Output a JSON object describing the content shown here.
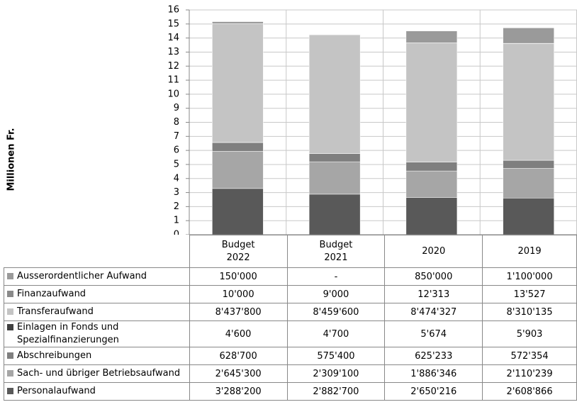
{
  "chart_data": {
    "type": "stacked-bar",
    "y_label": "Millionen Fr.",
    "categories": [
      "Budget\n2022",
      "Budget\n2021",
      "2020",
      "2019"
    ],
    "ylim": [
      0,
      16
    ],
    "yticks": [
      0,
      1,
      2,
      3,
      4,
      5,
      6,
      7,
      8,
      9,
      10,
      11,
      12,
      13,
      14,
      15,
      16
    ],
    "grid": true,
    "series": [
      {
        "name": "Personalaufwand",
        "color": "#595959",
        "values": [
          3.2882,
          2.8827,
          2.650216,
          2.608866
        ],
        "value_labels": [
          "3'288'200",
          "2'882'700",
          "2'650'216",
          "2'608'866"
        ]
      },
      {
        "name": "Sach- und übriger Betriebsaufwand",
        "color": "#a6a6a6",
        "values": [
          2.6453,
          2.3091,
          1.886346,
          2.110239
        ],
        "value_labels": [
          "2'645'300",
          "2'309'100",
          "1'886'346",
          "2'110'239"
        ]
      },
      {
        "name": "Abschreibungen",
        "color": "#7f7f7f",
        "values": [
          0.6287,
          0.5754,
          0.625233,
          0.572354
        ],
        "value_labels": [
          "628'700",
          "575'400",
          "625'233",
          "572'354"
        ]
      },
      {
        "name": "Einlagen in Fonds und Spezialfinanzierungen",
        "color": "#404040",
        "values": [
          0.0046,
          0.0047,
          0.005674,
          0.005903
        ],
        "value_labels": [
          "4'600",
          "4'700",
          "5'674",
          "5'903"
        ]
      },
      {
        "name": "Transferaufwand",
        "color": "#c4c4c4",
        "values": [
          8.4378,
          8.4596,
          8.474327,
          8.310135
        ],
        "value_labels": [
          "8'437'800",
          "8'459'600",
          "8'474'327",
          "8'310'135"
        ]
      },
      {
        "name": "Finanzaufwand",
        "color": "#8a8a8a",
        "values": [
          0.01,
          0.009,
          0.012313,
          0.013527
        ],
        "value_labels": [
          "10'000",
          "9'000",
          "12'313",
          "13'527"
        ]
      },
      {
        "name": "Ausserordentlicher Aufwand",
        "color": "#9a9a9a",
        "values": [
          0.15,
          0,
          0.85,
          1.1
        ],
        "value_labels": [
          "150'000",
          "-",
          "850'000",
          "1'100'000"
        ]
      }
    ]
  }
}
